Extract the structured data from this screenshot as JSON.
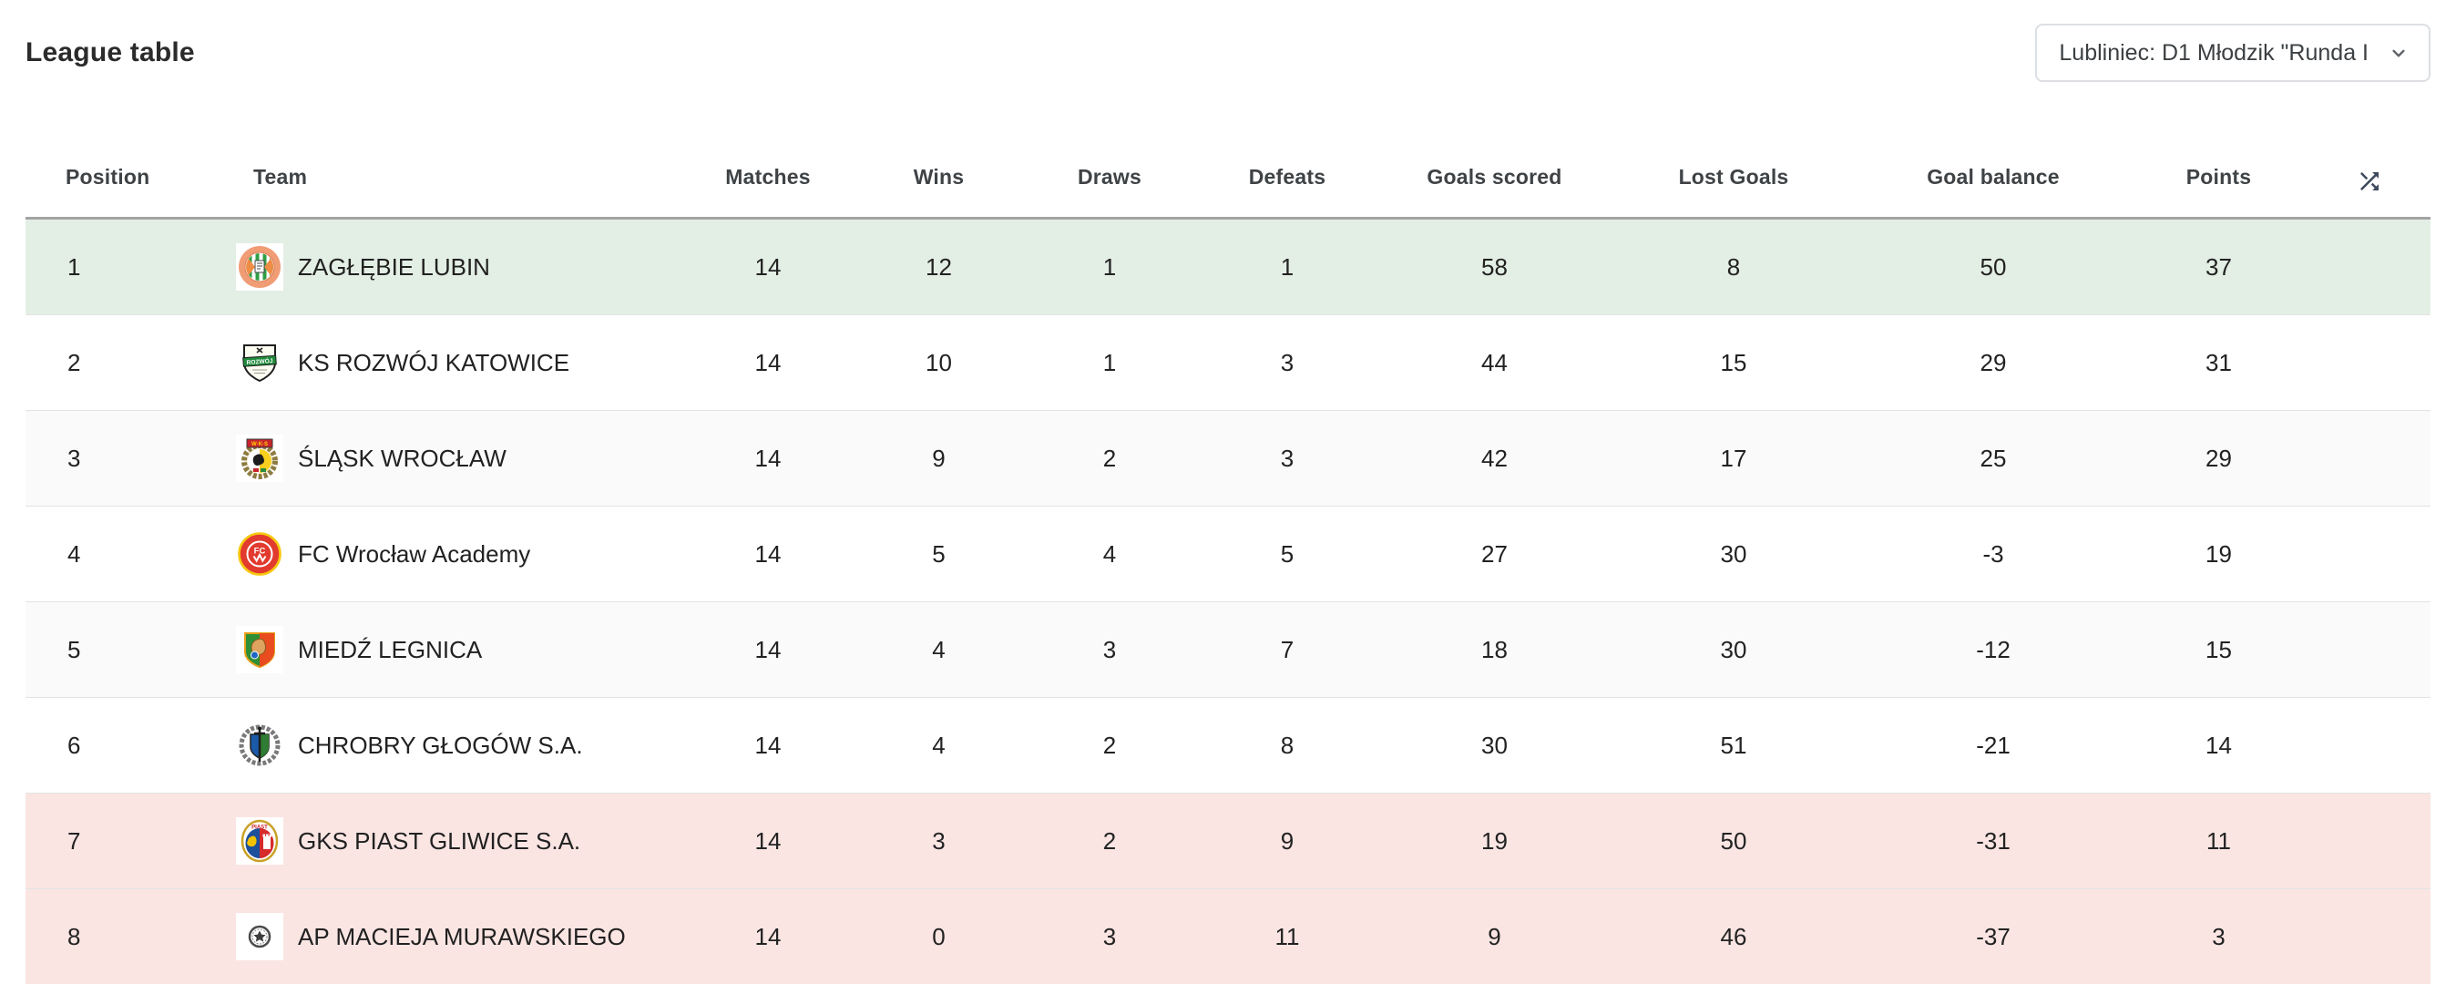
{
  "page": {
    "title": "League table"
  },
  "season_selector": {
    "label": "Lubliniec: D1 Młodzik \"Runda I",
    "icon": "chevron-down-icon"
  },
  "colors": {
    "promotion_row": "#e3eee4",
    "relegation_row": "#fae5e3",
    "zebra_row": "#fafafa",
    "header_divider": "#a4a4a4",
    "row_divider": "#e4e4e4",
    "header_text": "#3f4346",
    "cell_text": "#212121",
    "shuffle_icon": "#3e4a5e"
  },
  "table": {
    "headers": {
      "position": "Position",
      "team": "Team",
      "matches": "Matches",
      "wins": "Wins",
      "draws": "Draws",
      "defeats": "Defeats",
      "goals_scored": "Goals scored",
      "lost_goals": "Lost Goals",
      "goal_balance": "Goal balance",
      "points": "Points",
      "sort_icon": "shuffle-icon"
    },
    "rows": [
      {
        "position": 1,
        "team": "ZAGŁĘBIE LUBIN",
        "badge": "zaglebie-lubin",
        "matches": 14,
        "wins": 12,
        "draws": 1,
        "defeats": 1,
        "goals_scored": 58,
        "lost_goals": 8,
        "goal_balance": 50,
        "points": 37,
        "highlight": "promotion"
      },
      {
        "position": 2,
        "team": "KS ROZWÓJ KATOWICE",
        "badge": "rozwoj-katowice",
        "matches": 14,
        "wins": 10,
        "draws": 1,
        "defeats": 3,
        "goals_scored": 44,
        "lost_goals": 15,
        "goal_balance": 29,
        "points": 31,
        "highlight": "none"
      },
      {
        "position": 3,
        "team": "ŚLĄSK WROCŁAW",
        "badge": "slask-wroclaw",
        "matches": 14,
        "wins": 9,
        "draws": 2,
        "defeats": 3,
        "goals_scored": 42,
        "lost_goals": 17,
        "goal_balance": 25,
        "points": 29,
        "highlight": "none"
      },
      {
        "position": 4,
        "team": "FC Wrocław Academy",
        "badge": "fc-wroclaw-academy",
        "matches": 14,
        "wins": 5,
        "draws": 4,
        "defeats": 5,
        "goals_scored": 27,
        "lost_goals": 30,
        "goal_balance": -3,
        "points": 19,
        "highlight": "none"
      },
      {
        "position": 5,
        "team": "MIEDŹ LEGNICA",
        "badge": "miedz-legnica",
        "matches": 14,
        "wins": 4,
        "draws": 3,
        "defeats": 7,
        "goals_scored": 18,
        "lost_goals": 30,
        "goal_balance": -12,
        "points": 15,
        "highlight": "none"
      },
      {
        "position": 6,
        "team": "CHROBRY GŁOGÓW S.A.",
        "badge": "chrobry-glogow",
        "matches": 14,
        "wins": 4,
        "draws": 2,
        "defeats": 8,
        "goals_scored": 30,
        "lost_goals": 51,
        "goal_balance": -21,
        "points": 14,
        "highlight": "none"
      },
      {
        "position": 7,
        "team": "GKS PIAST GLIWICE S.A.",
        "badge": "piast-gliwice",
        "matches": 14,
        "wins": 3,
        "draws": 2,
        "defeats": 9,
        "goals_scored": 19,
        "lost_goals": 50,
        "goal_balance": -31,
        "points": 11,
        "highlight": "relegation"
      },
      {
        "position": 8,
        "team": "AP MACIEJA MURAWSKIEGO",
        "badge": "ap-murawskiego",
        "matches": 14,
        "wins": 0,
        "draws": 3,
        "defeats": 11,
        "goals_scored": 9,
        "lost_goals": 46,
        "goal_balance": -37,
        "points": 3,
        "highlight": "relegation"
      }
    ]
  },
  "badge_text": {
    "rozwoj-katowice": [
      "ROZWÓJ"
    ],
    "slask-wroclaw": [
      "W·K·S"
    ],
    "fc-wroclaw-academy": [
      "FC"
    ],
    "piast-gliwice": [
      "PIAST"
    ]
  }
}
